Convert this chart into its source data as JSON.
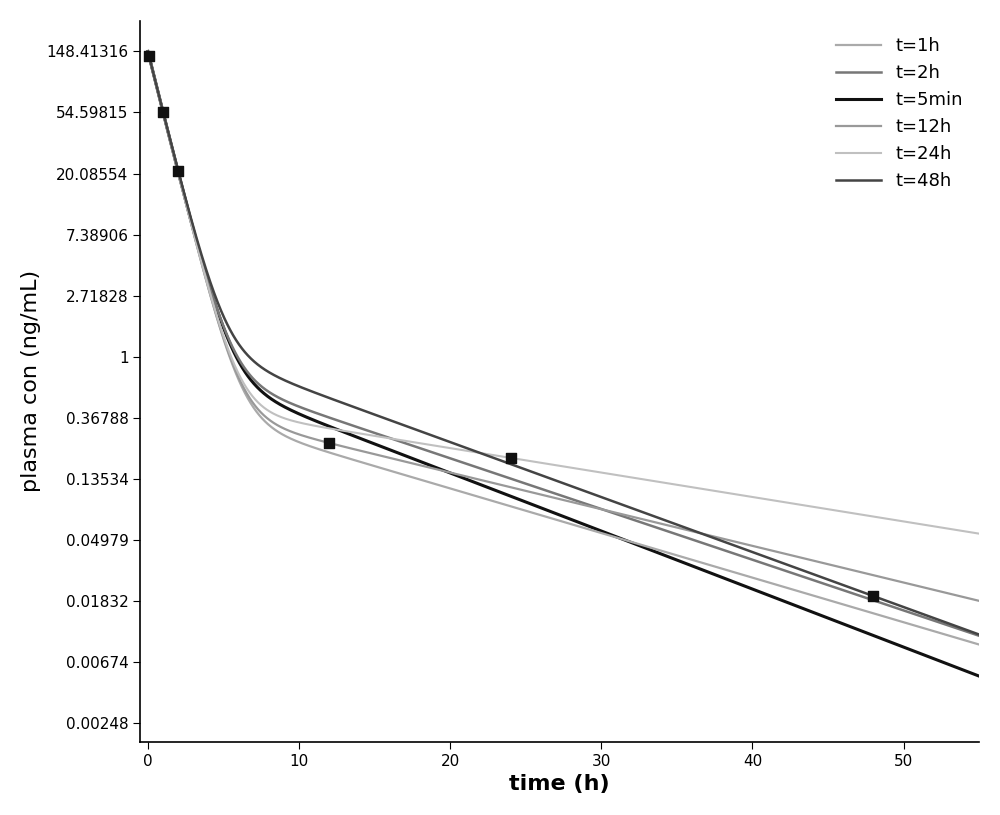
{
  "ylabel": "plasma con (ng/mL)",
  "xlabel": "time (h)",
  "ytick_values": [
    148.41316,
    54.59815,
    20.08554,
    7.38906,
    2.71828,
    1,
    0.36788,
    0.13534,
    0.04979,
    0.01832,
    0.00674,
    0.00248
  ],
  "ytick_labels": [
    "148.41316",
    "54.59815",
    "20.08554",
    "7.38906",
    "2.71828",
    "1",
    "0.36788",
    "0.13534",
    "0.04979",
    "0.01832",
    "0.00674",
    "0.00248"
  ],
  "xlim": [
    -0.5,
    55
  ],
  "xticks": [
    0,
    10,
    20,
    30,
    40,
    50
  ],
  "curves": [
    {
      "label": "t=1h",
      "color": "#aaaaaa",
      "lw": 1.6,
      "t_dose": 1.0,
      "A": 148.41316,
      "alpha": 0.5,
      "B": 5.0,
      "beta": 0.045
    },
    {
      "label": "t=2h",
      "color": "#777777",
      "lw": 1.8,
      "t_dose": 2.0,
      "A": 148.41316,
      "alpha": 0.5,
      "B": 5.0,
      "beta": 0.06
    },
    {
      "label": "t=5min",
      "color": "#111111",
      "lw": 2.3,
      "t_dose": 0.0833,
      "A": 148.41316,
      "alpha": 0.5,
      "B": 5.0,
      "beta": 0.08
    },
    {
      "label": "t=12h",
      "color": "#999999",
      "lw": 1.6,
      "t_dose": 12.0,
      "A": 148.41316,
      "alpha": 0.5,
      "B": 5.0,
      "beta": 0.035
    },
    {
      "label": "t=24h",
      "color": "#c0c0c0",
      "lw": 1.6,
      "t_dose": 24.0,
      "A": 148.41316,
      "alpha": 0.5,
      "B": 5.0,
      "beta": 0.022
    },
    {
      "label": "t=48h",
      "color": "#444444",
      "lw": 1.8,
      "t_dose": 48.0,
      "A": 148.41316,
      "alpha": 0.5,
      "B": 5.0,
      "beta": 0.05
    }
  ],
  "scatter_color": "#111111",
  "scatter_marker": "s",
  "scatter_size": 55,
  "background_color": "#ffffff",
  "legend_fontsize": 13,
  "axis_label_fontsize": 16,
  "tick_fontsize": 11
}
